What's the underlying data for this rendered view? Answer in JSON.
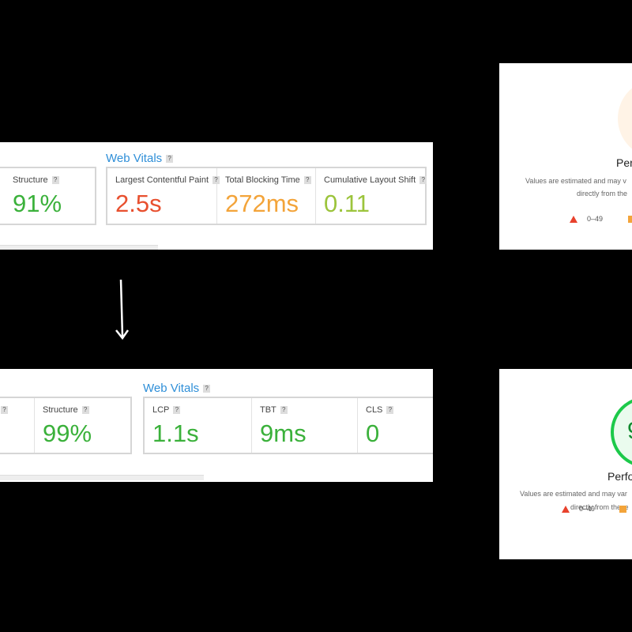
{
  "before": {
    "heading": "Web Vitals",
    "help": "?",
    "structure": {
      "label": "Structure",
      "value": "91%"
    },
    "vitals": [
      {
        "label": "Largest Contentful Paint",
        "value": "2.5s"
      },
      {
        "label": "Total Blocking Time",
        "value": "272ms"
      },
      {
        "label": "Cumulative Layout Shift",
        "value": "0.11"
      }
    ]
  },
  "after": {
    "heading": "Web Vitals",
    "help": "?",
    "structure": {
      "label": "Structure",
      "value": "99%"
    },
    "vitals": [
      {
        "label": "LCP",
        "value": "1.1s"
      },
      {
        "label": "TBT",
        "value": "9ms"
      },
      {
        "label": "CLS",
        "value": "0"
      }
    ]
  },
  "lighthouse_before": {
    "title": "Per",
    "note_line1": "Values are estimated and may v",
    "note_line2": "directly from the",
    "legend": [
      "0–49"
    ]
  },
  "lighthouse_after": {
    "score": "9",
    "title": "Perfo",
    "note_line1": "Values are estimated and may var",
    "note_line2": "directly from these",
    "legend": [
      "0–49"
    ]
  }
}
